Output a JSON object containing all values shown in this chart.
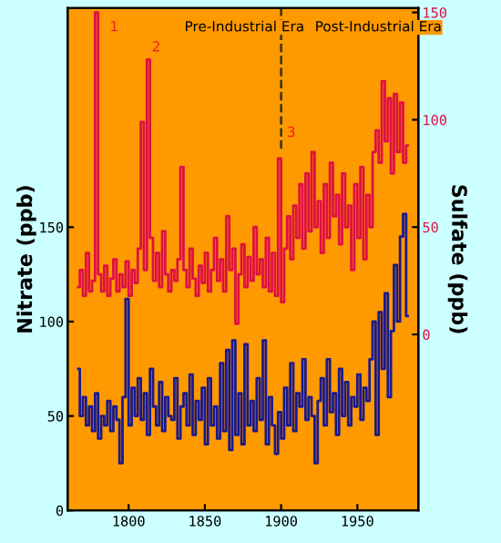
{
  "chart_data": {
    "type": "step",
    "ylabel": "Nitrate (ppb)",
    "y2label": "Sulfate (ppb)",
    "xlim": [
      1760,
      1990
    ],
    "xticks": [
      1800,
      1850,
      1900,
      1950
    ],
    "ylim": [
      0,
      266
    ],
    "yticks": [
      0,
      50,
      100,
      150
    ],
    "y2lim": [
      -82,
      152
    ],
    "y2ticks": [
      0,
      50,
      100,
      150
    ],
    "grid": false,
    "legend": false,
    "annotations": [
      "Pre-Industrial Era",
      "Post-Industrial Era",
      "1",
      "2",
      "3"
    ],
    "ref_lines": [
      {
        "axis": "x",
        "value": 1900,
        "line_style": "dashed",
        "color": "#333300"
      }
    ],
    "series": [
      {
        "color": "#dd1144",
        "axis": "y2",
        "x": [
          1767,
          1769,
          1771,
          1773,
          1775,
          1777,
          1779,
          1781,
          1783,
          1785,
          1787,
          1789,
          1791,
          1793,
          1795,
          1797,
          1799,
          1801,
          1803,
          1805,
          1807,
          1809,
          1811,
          1813,
          1815,
          1817,
          1819,
          1821,
          1823,
          1825,
          1827,
          1829,
          1831,
          1833,
          1835,
          1837,
          1839,
          1841,
          1843,
          1845,
          1847,
          1849,
          1851,
          1853,
          1855,
          1857,
          1859,
          1861,
          1863,
          1865,
          1867,
          1869,
          1871,
          1873,
          1875,
          1877,
          1879,
          1881,
          1883,
          1885,
          1887,
          1889,
          1891,
          1893,
          1895,
          1897,
          1899,
          1901,
          1903,
          1905,
          1907,
          1909,
          1911,
          1913,
          1915,
          1917,
          1919,
          1921,
          1923,
          1925,
          1927,
          1929,
          1931,
          1933,
          1935,
          1937,
          1939,
          1941,
          1943,
          1945,
          1947,
          1949,
          1951,
          1953,
          1955,
          1957,
          1959,
          1961,
          1963,
          1965,
          1967,
          1969,
          1971,
          1973,
          1975,
          1977,
          1979,
          1981,
          1983
        ],
        "values": [
          22,
          30,
          18,
          38,
          20,
          25,
          150,
          28,
          20,
          32,
          18,
          26,
          35,
          20,
          28,
          22,
          34,
          18,
          30,
          24,
          40,
          99,
          30,
          128,
          45,
          25,
          38,
          22,
          48,
          28,
          20,
          30,
          25,
          35,
          78,
          30,
          22,
          40,
          26,
          18,
          32,
          24,
          38,
          20,
          30,
          45,
          25,
          35,
          20,
          55,
          30,
          40,
          5,
          28,
          42,
          22,
          36,
          25,
          50,
          28,
          35,
          22,
          45,
          20,
          38,
          18,
          82,
          15,
          40,
          55,
          35,
          60,
          45,
          70,
          40,
          75,
          48,
          85,
          50,
          62,
          38,
          70,
          45,
          80,
          55,
          65,
          42,
          75,
          50,
          60,
          30,
          70,
          45,
          78,
          35,
          65,
          50,
          85,
          95,
          80,
          118,
          90,
          110,
          75,
          112,
          85,
          108,
          80,
          88
        ]
      },
      {
        "color": "#1a1a8c",
        "x": [
          1767,
          1769,
          1771,
          1773,
          1775,
          1777,
          1779,
          1781,
          1783,
          1785,
          1787,
          1789,
          1791,
          1793,
          1795,
          1797,
          1799,
          1801,
          1803,
          1805,
          1807,
          1809,
          1811,
          1813,
          1815,
          1817,
          1819,
          1821,
          1823,
          1825,
          1827,
          1829,
          1831,
          1833,
          1835,
          1837,
          1839,
          1841,
          1843,
          1845,
          1847,
          1849,
          1851,
          1853,
          1855,
          1857,
          1859,
          1861,
          1863,
          1865,
          1867,
          1869,
          1871,
          1873,
          1875,
          1877,
          1879,
          1881,
          1883,
          1885,
          1887,
          1889,
          1891,
          1893,
          1895,
          1897,
          1899,
          1901,
          1903,
          1905,
          1907,
          1909,
          1911,
          1913,
          1915,
          1917,
          1919,
          1921,
          1923,
          1925,
          1927,
          1929,
          1931,
          1933,
          1935,
          1937,
          1939,
          1941,
          1943,
          1945,
          1947,
          1949,
          1951,
          1953,
          1955,
          1957,
          1959,
          1961,
          1963,
          1965,
          1967,
          1969,
          1971,
          1973,
          1975,
          1977,
          1979,
          1981,
          1983
        ],
        "values": [
          75,
          50,
          60,
          45,
          55,
          42,
          62,
          38,
          50,
          45,
          58,
          42,
          55,
          48,
          25,
          60,
          112,
          45,
          65,
          50,
          70,
          48,
          62,
          40,
          75,
          55,
          45,
          68,
          42,
          60,
          50,
          48,
          70,
          38,
          55,
          62,
          45,
          72,
          40,
          58,
          48,
          65,
          35,
          70,
          45,
          55,
          38,
          78,
          42,
          85,
          32,
          90,
          40,
          62,
          35,
          88,
          45,
          58,
          42,
          70,
          48,
          90,
          35,
          60,
          45,
          30,
          52,
          38,
          65,
          45,
          78,
          42,
          62,
          55,
          80,
          48,
          60,
          50,
          25,
          58,
          70,
          45,
          80,
          52,
          62,
          40,
          75,
          50,
          68,
          45,
          60,
          55,
          72,
          48,
          65,
          58,
          80,
          100,
          40,
          105,
          75,
          115,
          60,
          95,
          130,
          100,
          145,
          157,
          103
        ]
      }
    ]
  }
}
